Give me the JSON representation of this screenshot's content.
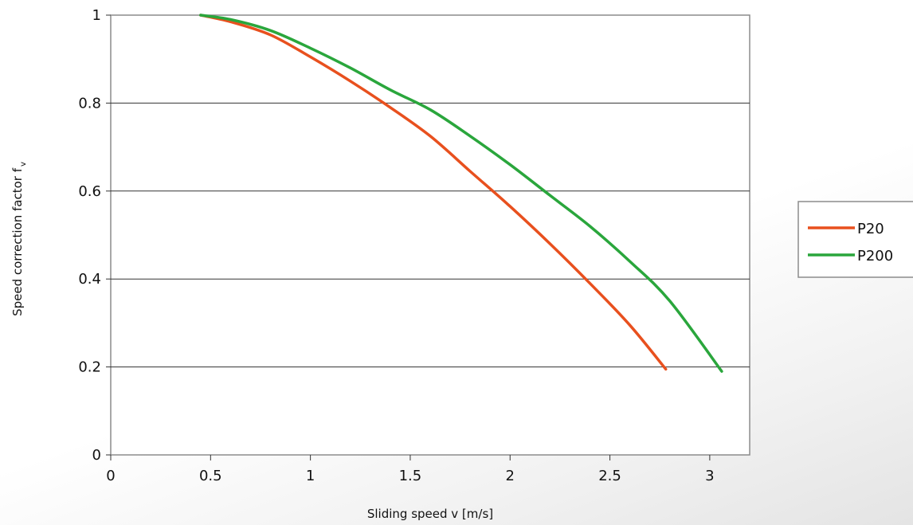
{
  "chart_data": {
    "type": "line",
    "xlabel": "Sliding speed v [m/s]",
    "ylabel": "Speed correction factor f",
    "ylabel_subscript": "v",
    "xlim": [
      0,
      3.2
    ],
    "ylim": [
      0,
      1
    ],
    "x_ticks": [
      0,
      0.5,
      1,
      1.5,
      2,
      2.5,
      3
    ],
    "x_tick_labels": [
      "0",
      "0.5",
      "1",
      "1.5",
      "2",
      "2.5",
      "3"
    ],
    "y_ticks": [
      0,
      0.2,
      0.4,
      0.6,
      0.8,
      1
    ],
    "y_tick_labels": [
      "0",
      "0.2",
      "0.4",
      "0.6",
      "0.8",
      "1"
    ],
    "grid": "horizontal",
    "legend_position": "right",
    "series": [
      {
        "name": "P20",
        "color": "#e8501e",
        "x": [
          0.45,
          0.6,
          0.8,
          1.0,
          1.2,
          1.4,
          1.6,
          1.8,
          2.0,
          2.2,
          2.4,
          2.6,
          2.78
        ],
        "y": [
          1.0,
          0.985,
          0.955,
          0.905,
          0.85,
          0.79,
          0.725,
          0.645,
          0.565,
          0.48,
          0.39,
          0.295,
          0.195
        ]
      },
      {
        "name": "P200",
        "color": "#2aa63c",
        "x": [
          0.45,
          0.6,
          0.8,
          1.0,
          1.2,
          1.4,
          1.6,
          1.8,
          2.0,
          2.2,
          2.4,
          2.6,
          2.8,
          3.06
        ],
        "y": [
          1.0,
          0.99,
          0.965,
          0.925,
          0.88,
          0.83,
          0.785,
          0.725,
          0.66,
          0.59,
          0.52,
          0.44,
          0.35,
          0.19
        ]
      }
    ]
  }
}
